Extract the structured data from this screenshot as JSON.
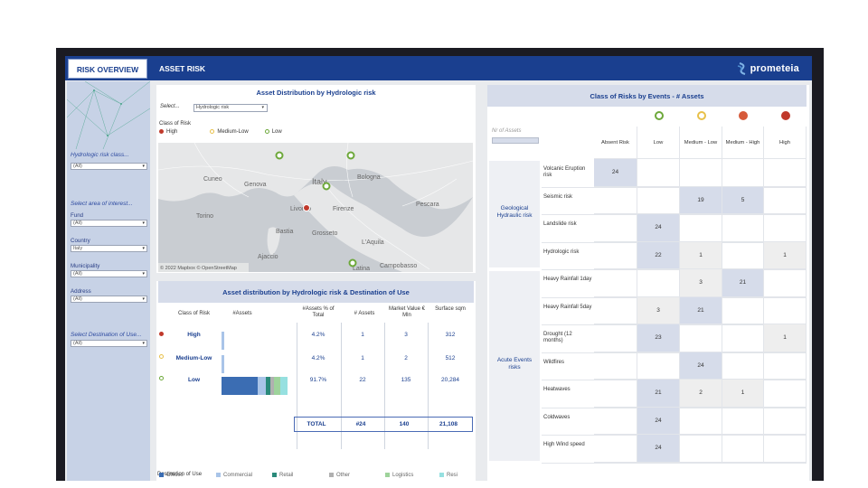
{
  "tabs": [
    {
      "label": "RISK OVERVIEW",
      "active": true
    },
    {
      "label": "ASSET RISK",
      "active": false
    }
  ],
  "brand": {
    "name": "prometeia"
  },
  "sidebar": {
    "hydro_label": "Hydrologic risk class...",
    "hydro_value": "(All)",
    "area_label": "Select area of interest...",
    "filters": [
      {
        "label": "Fund",
        "value": "(All)"
      },
      {
        "label": "Country",
        "value": "Italy"
      },
      {
        "label": "Municipality",
        "value": "(All)"
      },
      {
        "label": "Address",
        "value": "(All)"
      }
    ],
    "dest_label": "Select Destination of Use...",
    "dest_value": "(All)"
  },
  "map_panel": {
    "title": "Asset Distribution by Hydrologic risk",
    "select_label": "Select...",
    "select_value": "Hydrologic risk",
    "legend_title": "Class of Risk",
    "legend": [
      {
        "label": "High",
        "color": "#c0392b"
      },
      {
        "label": "Medium-Low",
        "color": "#e8c04a"
      },
      {
        "label": "Low",
        "color": "#6da83a"
      }
    ],
    "place_labels": [
      "Cuneo",
      "Torino",
      "Genova",
      "Livorno",
      "Italy",
      "Grosseto",
      "Bastia",
      "Pescara",
      "L'Aquila",
      "Latina",
      "Campobasso",
      "Ajaccio",
      "Firenze",
      "Bologna"
    ],
    "credit": "© 2022 Mapbox © OpenStreetMap"
  },
  "dist_panel": {
    "title": "Asset distribution by Hydrologic risk & Destination of Use",
    "headers": [
      "Class of Risk",
      "#Assets",
      "#Assets % of Total",
      "# Assets",
      "Market Value € Mln",
      "Surface sqm"
    ],
    "rows": [
      {
        "label": "High",
        "pct": "4.2%",
        "assets": "1",
        "mv": "3",
        "surface": "312",
        "share": 0.042,
        "color": "#c0392b"
      },
      {
        "label": "Medium-Low",
        "pct": "4.2%",
        "assets": "1",
        "mv": "2",
        "surface": "512",
        "share": 0.042,
        "color": "#e8c04a"
      },
      {
        "label": "Low",
        "pct": "91.7%",
        "assets": "22",
        "mv": "135",
        "surface": "20,284",
        "share": 0.917,
        "color": "#6da83a"
      }
    ],
    "total": {
      "label": "TOTAL",
      "assets": "#24",
      "mv": "140",
      "surface": "21,108"
    },
    "dest_title": "Destination of Use",
    "dest_legend": [
      {
        "label": "Offices",
        "color": "#3b6db3"
      },
      {
        "label": "Commercial",
        "color": "#a9c4e8"
      },
      {
        "label": "Retail",
        "color": "#2a8a7a"
      },
      {
        "label": "Other",
        "color": "#b0b0b0"
      },
      {
        "label": "Logistics",
        "color": "#9ed39b"
      },
      {
        "label": "Resi",
        "color": "#96e0e0"
      }
    ]
  },
  "events_panel": {
    "title": "Class of Risks by Events -  # Assets",
    "nr_label": "Nr of Assets",
    "columns": [
      "Absent Risk",
      "Low",
      "Medium - Low",
      "Medium - High",
      "High"
    ],
    "groups": [
      {
        "label": "Geological Hydraulic risk"
      },
      {
        "label": "Acute Events risks"
      }
    ],
    "rows": [
      {
        "label": "Volcanic Eruption risk",
        "cells": [
          "24",
          "",
          "",
          "",
          ""
        ]
      },
      {
        "label": "Seismic risk",
        "cells": [
          "",
          "",
          "19",
          "5",
          ""
        ]
      },
      {
        "label": "Landslide risk",
        "cells": [
          "",
          "24",
          "",
          "",
          ""
        ]
      },
      {
        "label": "Hydrologic risk",
        "cells": [
          "",
          "22",
          "1",
          "",
          "1"
        ]
      },
      {
        "label": "Heavy Rainfall 1day",
        "cells": [
          "",
          "",
          "3",
          "21",
          ""
        ]
      },
      {
        "label": "Heavy Rainfall 5day",
        "cells": [
          "",
          "3",
          "21",
          "",
          ""
        ]
      },
      {
        "label": "Drought (12 months)",
        "cells": [
          "",
          "23",
          "",
          "",
          "1"
        ]
      },
      {
        "label": "Wildfires",
        "cells": [
          "",
          "",
          "24",
          "",
          ""
        ]
      },
      {
        "label": "Heatwaves",
        "cells": [
          "",
          "21",
          "2",
          "1",
          ""
        ]
      },
      {
        "label": "Coldwaves",
        "cells": [
          "",
          "24",
          "",
          "",
          ""
        ]
      },
      {
        "label": "High Wind speed",
        "cells": [
          "",
          "24",
          "",
          "",
          ""
        ]
      }
    ]
  }
}
